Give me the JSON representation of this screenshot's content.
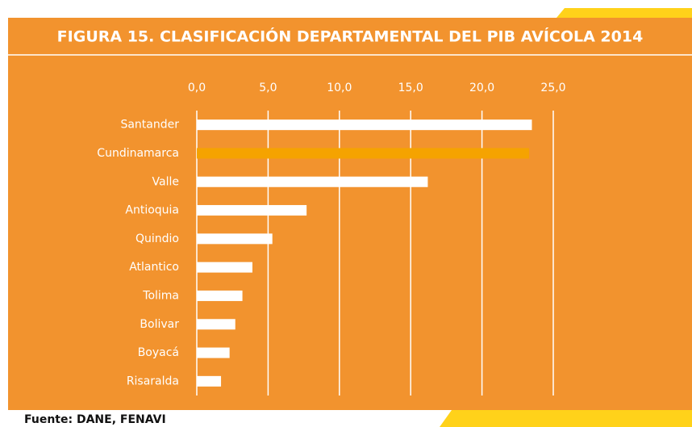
{
  "chart_data": {
    "type": "bar",
    "orientation": "horizontal",
    "title": "FIGURA 15. CLASIFICACIÓN DEPARTAMENTAL DEL PIB AVÍCOLA 2014",
    "categories": [
      "Santander",
      "Cundinamarca",
      "Valle",
      "Antioquia",
      "Quindio",
      "Atlantico",
      "Tolima",
      "Bolivar",
      "Boyacá",
      "Risaralda"
    ],
    "values": [
      23.5,
      23.3,
      16.2,
      7.7,
      5.3,
      3.9,
      3.2,
      2.7,
      2.3,
      1.7
    ],
    "colors": [
      "#ffffff",
      "#f5a300",
      "#ffffff",
      "#ffffff",
      "#ffffff",
      "#ffffff",
      "#ffffff",
      "#ffffff",
      "#ffffff",
      "#ffffff"
    ],
    "xlim": [
      0,
      25
    ],
    "xticks": [
      {
        "value": 0,
        "label": "0,0"
      },
      {
        "value": 5,
        "label": "5,0"
      },
      {
        "value": 10,
        "label": "10,0"
      },
      {
        "value": 15,
        "label": "15,0"
      },
      {
        "value": 20,
        "label": "20,0"
      },
      {
        "value": 25,
        "label": "25,0"
      }
    ],
    "grid": true,
    "source": "Fuente: DANE, FENAVI"
  }
}
